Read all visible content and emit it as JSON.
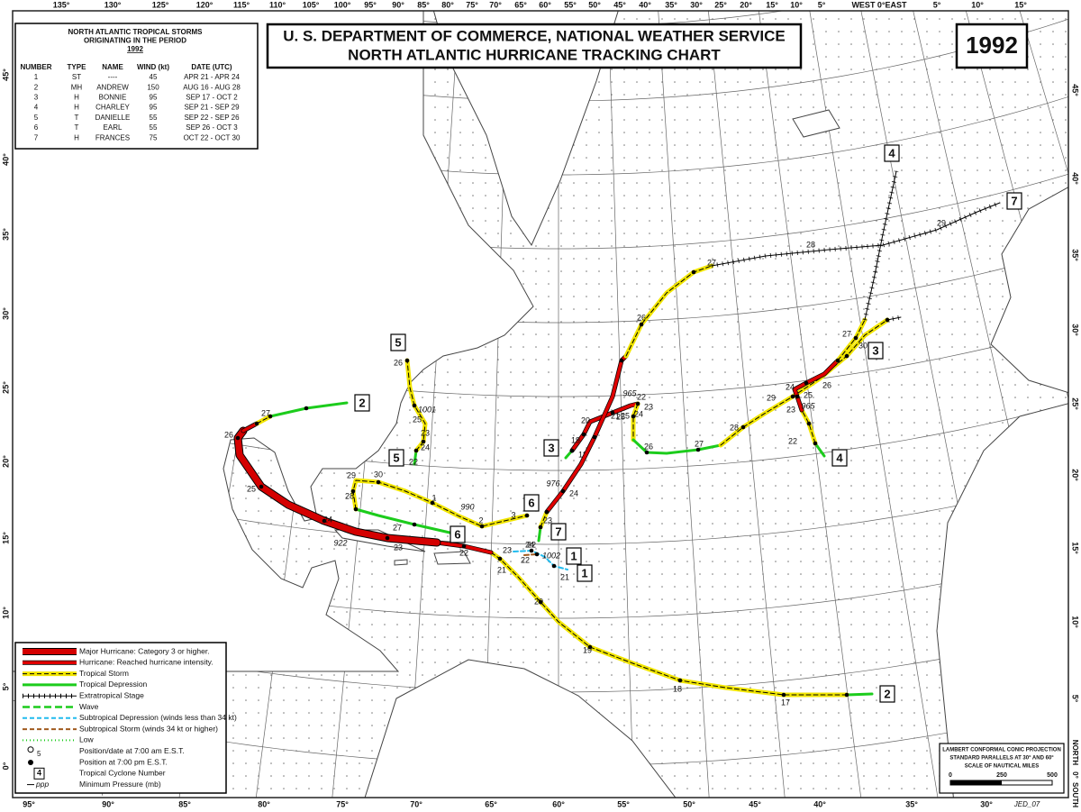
{
  "header": {
    "title_lines": [
      "U. S. DEPARTMENT OF COMMERCE, NATIONAL WEATHER SERVICE",
      "NORTH ATLANTIC HURRICANE TRACKING CHART"
    ],
    "year": "1992"
  },
  "storm_table": {
    "title_lines": [
      "NORTH ATLANTIC TROPICAL STORMS",
      "ORIGINATING IN THE PERIOD",
      "1992"
    ],
    "columns": [
      "NUMBER",
      "TYPE",
      "NAME",
      "WIND (kt)",
      "DATE (UTC)"
    ],
    "rows": [
      [
        "1",
        "ST",
        "----",
        "45",
        "APR 21 - APR 24"
      ],
      [
        "2",
        "MH",
        "ANDREW",
        "150",
        "AUG 16 - AUG 28"
      ],
      [
        "3",
        "H",
        "BONNIE",
        "95",
        "SEP 17 - OCT  2"
      ],
      [
        "4",
        "H",
        "CHARLEY",
        "95",
        "SEP 21 - SEP 29"
      ],
      [
        "5",
        "T",
        "DANIELLE",
        "55",
        "SEP 22 - SEP 26"
      ],
      [
        "6",
        "T",
        "EARL",
        "55",
        "SEP 26 - OCT  3"
      ],
      [
        "7",
        "H",
        "FRANCES",
        "75",
        "OCT 22 - OCT 30"
      ]
    ]
  },
  "legend": {
    "items": [
      "Major Hurricane: Category 3 or higher.",
      "Hurricane: Reached hurricane intensity.",
      "Tropical Storm",
      "Tropical Depression",
      "Extratropical Stage",
      "Wave",
      "Subtropical Depression (winds less than 34 kt)",
      "Subtropical Storm (winds 34 kt or higher)",
      "Low",
      "Position/date at 7:00 am E.S.T.",
      "Position at 7:00 pm E.S.T.",
      "Tropical Cyclone Number",
      "Minimum Pressure (mb)"
    ],
    "position_label": "5",
    "number_label": "4",
    "pressure_label": "ppp"
  },
  "scale": {
    "lines": [
      "LAMBERT CONFORMAL CONIC PROJECTION",
      "STANDARD PARALLELS AT 30° AND 60°",
      "SCALE OF NAUTICAL MILES"
    ],
    "ticks": [
      "0",
      "250",
      "500"
    ]
  },
  "credit": "JED_07",
  "orientation": [
    "NORTH",
    "0°",
    "SOUTH"
  ],
  "longitude_labels": {
    "top": [
      "135°",
      "130°",
      "125°",
      "120°",
      "115°",
      "110°",
      "105°",
      "100°",
      "95°",
      "90°",
      "85°",
      "80°",
      "75°",
      "70°",
      "65°",
      "60°",
      "55°",
      "50°",
      "45°",
      "40°",
      "35°",
      "30°",
      "25°",
      "20°",
      "15°",
      "10°",
      "5°",
      "WEST 0°EAST",
      "5°",
      "10°",
      "15°"
    ],
    "bottom": [
      "95°",
      "90°",
      "85°",
      "80°",
      "75°",
      "70°",
      "65°",
      "60°",
      "55°",
      "50°",
      "45°",
      "40°",
      "35°",
      "30°"
    ]
  },
  "latitude_labels": {
    "left": [
      "45°",
      "40°",
      "35°",
      "30°",
      "25°",
      "20°",
      "15°",
      "10°",
      "5°",
      "0°"
    ],
    "right": [
      "45°",
      "40°",
      "35°",
      "30°",
      "25°",
      "20°",
      "15°",
      "10°",
      "5°"
    ]
  },
  "tracks": [
    {
      "number": "1",
      "dates": [
        "23",
        "24",
        "22",
        "21"
      ],
      "pressure": "1002"
    },
    {
      "number": "2",
      "dates": [
        "17",
        "18",
        "19",
        "20",
        "21",
        "22",
        "23",
        "24",
        "25",
        "26",
        "27"
      ],
      "pressure": "922"
    },
    {
      "number": "3",
      "dates": [
        "18",
        "19",
        "20",
        "21",
        "22",
        "23",
        "24",
        "25",
        "26",
        "27",
        "28",
        "29",
        "30"
      ],
      "pressure": "965"
    },
    {
      "number": "4",
      "dates": [
        "22",
        "23",
        "24",
        "25",
        "26",
        "27"
      ],
      "pressure": "965"
    },
    {
      "number": "5",
      "dates": [
        "22",
        "23",
        "24",
        "25",
        "26"
      ],
      "pressure": "1001"
    },
    {
      "number": "6",
      "dates": [
        "27",
        "28",
        "29",
        "30",
        "1",
        "2",
        "3"
      ],
      "pressure": "990"
    },
    {
      "number": "7",
      "dates": [
        "22",
        "23",
        "24",
        "25",
        "26",
        "27",
        "28",
        "29"
      ],
      "pressure": "976"
    }
  ]
}
